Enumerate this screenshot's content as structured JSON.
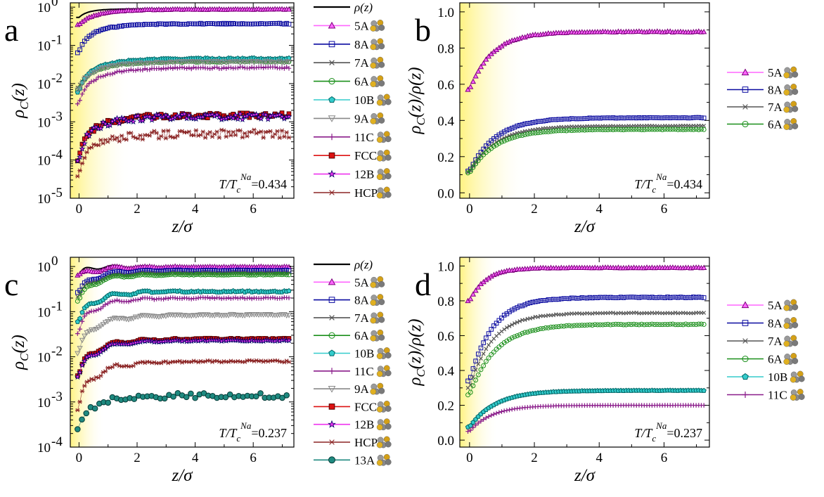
{
  "chart_data": [
    {
      "id": "a",
      "panel_label": "a",
      "type": "scatter",
      "xlabel": "z/σ",
      "ylabel": "ρC(z)",
      "ylabel_main": "ρ",
      "ylabel_sub": "C",
      "ylabel_rest": "(z)",
      "yscale": "log",
      "xlim": [
        -0.3,
        7.4
      ],
      "ylim": [
        1e-05,
        1.3
      ],
      "xticks": [
        0,
        2,
        4,
        6
      ],
      "xtick_labels": [
        "0",
        "2",
        "4",
        "6"
      ],
      "yticks": [
        1e-05,
        0.0001,
        0.001,
        0.01,
        0.1,
        1
      ],
      "ytick_labels": [
        [
          "10",
          "-5"
        ],
        [
          "10",
          "-4"
        ],
        [
          "10",
          "-3"
        ],
        [
          "10",
          "-2"
        ],
        [
          "10",
          "-1"
        ],
        [
          "10",
          "0"
        ]
      ],
      "shade_to_x": 1.8,
      "legend_position": "right",
      "annotation": {
        "pre": "T/T",
        "sub": "c",
        "sup": "Na",
        "value": "=0.434"
      },
      "curve": {
        "name": "ρ(z)",
        "bulk": 0.9,
        "width": 0.8
      },
      "series": [
        {
          "name": "5A",
          "marker": "triangle-up",
          "color": "#ff66ff",
          "dark": "#7d007d",
          "y0": 0.35,
          "bulk": 0.88,
          "width": 0.8,
          "noise": 0.02
        },
        {
          "name": "8A",
          "marker": "square",
          "color": "#0a0aa0",
          "y0": 0.065,
          "bulk": 0.37,
          "width": 0.8,
          "noise": 0.03
        },
        {
          "name": "7A",
          "marker": "x",
          "color": "#555555",
          "y0": 0.008,
          "bulk": 0.041,
          "width": 0.9,
          "noise": 0.04
        },
        {
          "name": "6A",
          "marker": "circle",
          "color": "#1a8f1a",
          "y0": 0.007,
          "bulk": 0.038,
          "width": 0.9,
          "noise": 0.04
        },
        {
          "name": "10B",
          "marker": "pentagon",
          "color": "#33cccc",
          "dark": "#006666",
          "y0": 0.006,
          "bulk": 0.045,
          "width": 0.9,
          "noise": 0.04
        },
        {
          "name": "9A",
          "marker": "triangle-down",
          "color": "#888888",
          "y0": 0.007,
          "bulk": 0.037,
          "width": 0.9,
          "noise": 0.05
        },
        {
          "name": "11C",
          "marker": "plus",
          "color": "#8a1c8a",
          "y0": 0.003,
          "bulk": 0.026,
          "width": 1.0,
          "noise": 0.05
        },
        {
          "name": "FCC",
          "marker": "square",
          "color": "#dd1111",
          "dark": "#550000",
          "y0": 0.0001,
          "bulk": 0.0015,
          "width": 1.0,
          "noise": 0.15
        },
        {
          "name": "12B",
          "marker": "star",
          "color": "#ee33ee",
          "dark": "#000066",
          "y0": 0.0001,
          "bulk": 0.0014,
          "width": 1.0,
          "noise": 0.18
        },
        {
          "name": "HCP",
          "marker": "asterisk",
          "color": "#8b2525",
          "y0": 4e-05,
          "bulk": 0.0005,
          "width": 1.0,
          "noise": 0.25
        }
      ]
    },
    {
      "id": "b",
      "panel_label": "b",
      "type": "scatter",
      "xlabel": "z/σ",
      "ylabel": "ρC(z)/ρ(z)",
      "ylabel_main": "ρ",
      "ylabel_sub": "C",
      "ylabel_rest": "(z)/ρ(z)",
      "yscale": "linear",
      "xlim": [
        -0.3,
        7.4
      ],
      "ylim": [
        -0.03,
        1.05
      ],
      "xticks": [
        0,
        2,
        4,
        6
      ],
      "xtick_labels": [
        "0",
        "2",
        "4",
        "6"
      ],
      "yticks": [
        0.0,
        0.2,
        0.4,
        0.6,
        0.8,
        1.0
      ],
      "ytick_labels": [
        "0.0",
        "0.2",
        "0.4",
        "0.6",
        "0.8",
        "1.0"
      ],
      "shade_to_x": 1.8,
      "legend_position": "right",
      "annotation": {
        "pre": "T/T",
        "sub": "c",
        "sup": "Na",
        "value": "=0.434"
      },
      "series": [
        {
          "name": "5A",
          "marker": "triangle-up",
          "color": "#ff66ff",
          "dark": "#7d007d",
          "y0": 0.57,
          "bulk": 0.89,
          "width": 0.7,
          "noise": 0.003
        },
        {
          "name": "8A",
          "marker": "square",
          "color": "#0a0aa0",
          "y0": 0.12,
          "bulk": 0.415,
          "width": 0.8,
          "noise": 0.004
        },
        {
          "name": "7A",
          "marker": "x",
          "color": "#555555",
          "y0": 0.115,
          "bulk": 0.37,
          "width": 0.8,
          "noise": 0.004
        },
        {
          "name": "6A",
          "marker": "circle",
          "color": "#1a8f1a",
          "y0": 0.11,
          "bulk": 0.35,
          "width": 0.8,
          "noise": 0.004
        }
      ]
    },
    {
      "id": "c",
      "panel_label": "c",
      "type": "scatter",
      "xlabel": "z/σ",
      "ylabel": "ρC(z)",
      "ylabel_main": "ρ",
      "ylabel_sub": "C",
      "ylabel_rest": "(z)",
      "yscale": "log",
      "xlim": [
        -0.3,
        7.4
      ],
      "ylim": [
        0.0001,
        1.6
      ],
      "xticks": [
        0,
        2,
        4,
        6
      ],
      "xtick_labels": [
        "0",
        "2",
        "4",
        "6"
      ],
      "yticks": [
        0.0001,
        0.001,
        0.01,
        0.1,
        1
      ],
      "ytick_labels": [
        [
          "10",
          "-4"
        ],
        [
          "10",
          "-3"
        ],
        [
          "10",
          "-2"
        ],
        [
          "10",
          "-1"
        ],
        [
          "10",
          "0"
        ]
      ],
      "shade_to_x": 0.9,
      "legend_position": "right",
      "annotation": {
        "pre": "T/T",
        "sub": "c",
        "sup": "Na",
        "value": "=0.237"
      },
      "curve": {
        "name": "ρ(z)",
        "bulk": 1.0,
        "width": 0.5,
        "wiggle": 0.15
      },
      "series": [
        {
          "name": "5A",
          "marker": "triangle-up",
          "color": "#ff66ff",
          "dark": "#7d007d",
          "y0": 0.6,
          "bulk": 0.98,
          "width": 0.6,
          "noise": 0.02,
          "wiggle": 0.15
        },
        {
          "name": "8A",
          "marker": "square",
          "color": "#0a0aa0",
          "y0": 0.25,
          "bulk": 0.82,
          "width": 0.7,
          "noise": 0.02,
          "wiggle": 0.15
        },
        {
          "name": "7A",
          "marker": "x",
          "color": "#555555",
          "y0": 0.2,
          "bulk": 0.72,
          "width": 0.7,
          "noise": 0.02,
          "wiggle": 0.15
        },
        {
          "name": "6A",
          "marker": "circle",
          "color": "#1a8f1a",
          "y0": 0.16,
          "bulk": 0.66,
          "width": 0.7,
          "noise": 0.02,
          "wiggle": 0.15
        },
        {
          "name": "10B",
          "marker": "pentagon",
          "color": "#33cccc",
          "dark": "#006666",
          "y0": 0.055,
          "bulk": 0.28,
          "width": 0.8,
          "noise": 0.03,
          "wiggle": 0.2
        },
        {
          "name": "11C",
          "marker": "plus",
          "color": "#8a1c8a",
          "y0": 0.03,
          "bulk": 0.2,
          "width": 0.8,
          "noise": 0.03,
          "wiggle": 0.2
        },
        {
          "name": "9A",
          "marker": "triangle-down",
          "color": "#888888",
          "y0": 0.011,
          "bulk": 0.085,
          "width": 0.9,
          "noise": 0.03,
          "wiggle": 0.2
        },
        {
          "name": "FCC",
          "marker": "square",
          "color": "#dd1111",
          "dark": "#550000",
          "y0": 0.0035,
          "bulk": 0.025,
          "width": 0.9,
          "noise": 0.03,
          "wiggle": 0.2
        },
        {
          "name": "12B",
          "marker": "star",
          "color": "#ee33ee",
          "dark": "#000066",
          "y0": 0.0033,
          "bulk": 0.023,
          "width": 0.9,
          "noise": 0.03,
          "wiggle": 0.2
        },
        {
          "name": "HCP",
          "marker": "asterisk",
          "color": "#8b2525",
          "y0": 0.0006,
          "bulk": 0.008,
          "width": 1.0,
          "noise": 0.06,
          "wiggle": 0.25
        },
        {
          "name": "13A",
          "marker": "circle",
          "color": "#1f8a80",
          "filled": true,
          "dark": "#053a36",
          "step": 0.15,
          "y0": 0.00025,
          "bulk": 0.0014,
          "width": 0.8,
          "noise": 0.12,
          "wiggle": 0.15
        }
      ]
    },
    {
      "id": "d",
      "panel_label": "d",
      "type": "scatter",
      "xlabel": "z/σ",
      "ylabel": "ρC(z)/ρ(z)",
      "ylabel_main": "ρ",
      "ylabel_sub": "C",
      "ylabel_rest": "(z)/ρ(z)",
      "yscale": "linear",
      "xlim": [
        -0.3,
        7.4
      ],
      "ylim": [
        -0.04,
        1.05
      ],
      "xticks": [
        0,
        2,
        4,
        6
      ],
      "xtick_labels": [
        "0",
        "2",
        "4",
        "6"
      ],
      "yticks": [
        0.0,
        0.2,
        0.4,
        0.6,
        0.8,
        1.0
      ],
      "ytick_labels": [
        "0.0",
        "0.2",
        "0.4",
        "0.6",
        "0.8",
        "1.0"
      ],
      "shade_to_x": 0.9,
      "legend_position": "right",
      "annotation": {
        "pre": "T/T",
        "sub": "c",
        "sup": "Na",
        "value": "=0.237"
      },
      "series": [
        {
          "name": "5A",
          "marker": "triangle-up",
          "color": "#ff66ff",
          "dark": "#7d007d",
          "y0": 0.8,
          "bulk": 0.99,
          "width": 0.5,
          "noise": 0.002
        },
        {
          "name": "8A",
          "marker": "square",
          "color": "#0a0aa0",
          "y0": 0.34,
          "bulk": 0.82,
          "width": 0.7,
          "noise": 0.003
        },
        {
          "name": "7A",
          "marker": "x",
          "color": "#555555",
          "y0": 0.3,
          "bulk": 0.73,
          "width": 0.7,
          "noise": 0.003
        },
        {
          "name": "6A",
          "marker": "circle",
          "color": "#1a8f1a",
          "y0": 0.26,
          "bulk": 0.665,
          "width": 0.8,
          "noise": 0.003
        },
        {
          "name": "10B",
          "marker": "pentagon",
          "color": "#33cccc",
          "dark": "#006666",
          "y0": 0.075,
          "bulk": 0.285,
          "width": 0.8,
          "noise": 0.003
        },
        {
          "name": "11C",
          "marker": "plus",
          "color": "#8a1c8a",
          "y0": 0.05,
          "bulk": 0.2,
          "width": 0.7,
          "noise": 0.002
        }
      ]
    }
  ]
}
